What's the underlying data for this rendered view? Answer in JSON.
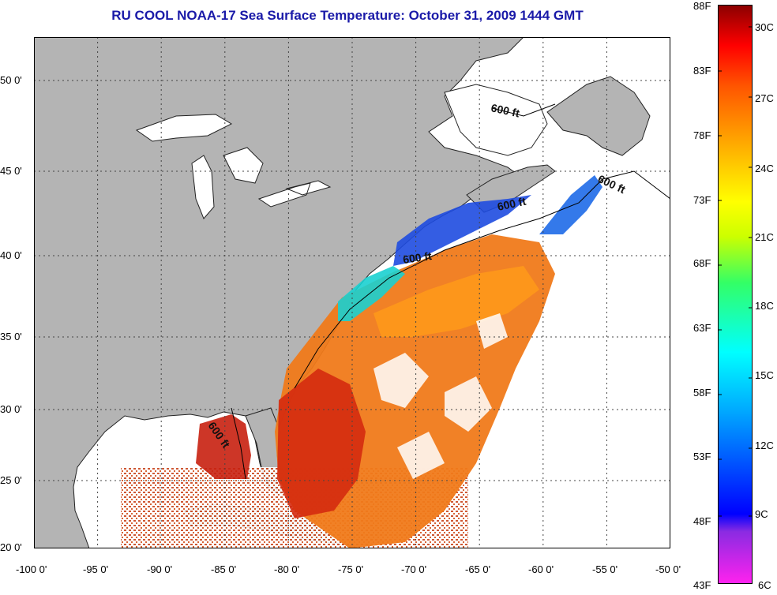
{
  "title": "RU COOL  NOAA-17  Sea Surface Temperature:  October 31, 2009 1444 GMT",
  "map": {
    "lon_ticks": [
      "-100 0'",
      "-95 0'",
      "-90 0'",
      "-85 0'",
      "-80 0'",
      "-75 0'",
      "-70 0'",
      "-65 0'",
      "-60 0'",
      "-55 0'",
      "-50 0'"
    ],
    "lat_ticks": [
      "50 0'",
      "45 0'",
      "40 0'",
      "35 0'",
      "30 0'",
      "25 0'",
      "20 0'"
    ],
    "contour_labels": [
      "600 ft",
      "600 ft",
      "600 ft",
      "600 ft",
      "600 ft"
    ],
    "colors": {
      "land": "#b4b4b4",
      "ocean_nodata": "#ffffff",
      "grid": "#444444"
    }
  },
  "colorbar": {
    "fahrenheit_labels": [
      "88F",
      "83F",
      "78F",
      "73F",
      "68F",
      "63F",
      "58F",
      "53F",
      "48F",
      "43F"
    ],
    "celsius_labels": [
      "30C",
      "27C",
      "24C",
      "21C",
      "18C",
      "15C",
      "12C",
      "9C",
      "6C"
    ],
    "range_c": [
      6,
      31
    ],
    "stops": [
      "#ff22ee",
      "#8a2be2",
      "#0000ff",
      "#00aaff",
      "#00ffff",
      "#33ff66",
      "#ccff00",
      "#ffff00",
      "#ffaa00",
      "#ff5500",
      "#ff0000",
      "#8b0000"
    ]
  }
}
